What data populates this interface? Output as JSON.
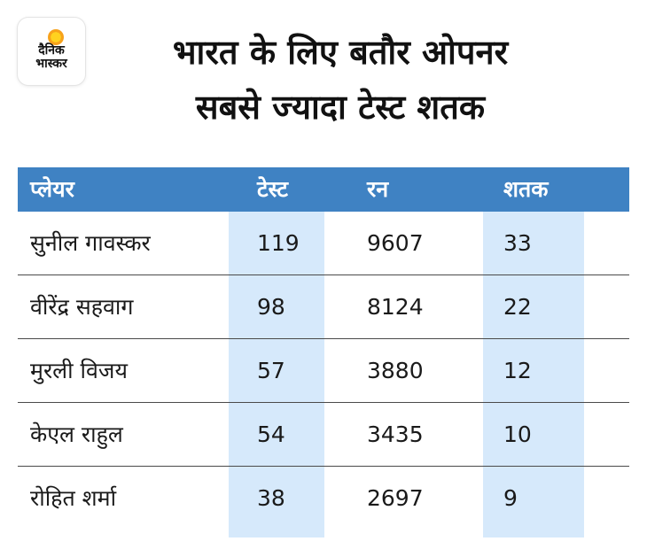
{
  "logo": {
    "line1": "दैनिक",
    "line2": "भास्कर"
  },
  "title": {
    "line1": "भारत के लिए बतौर ओपनर",
    "line2": "सबसे ज्यादा टेस्ट शतक"
  },
  "chart_data": {
    "type": "table",
    "title": "भारत के लिए बतौर ओपनर सबसे ज्यादा टेस्ट शतक",
    "columns": [
      "प्लेयर",
      "टेस्ट",
      "रन",
      "शतक"
    ],
    "rows": [
      [
        "सुनील गावस्कर",
        119,
        9607,
        33
      ],
      [
        "वीरेंद्र सहवाग",
        98,
        8124,
        22
      ],
      [
        "मुरली विजय",
        57,
        3880,
        12
      ],
      [
        "केएल राहुल",
        54,
        3435,
        10
      ],
      [
        "रोहित शर्मा",
        38,
        2697,
        9
      ]
    ],
    "header_color": "#3f82c3",
    "highlight_column_color": "#d6e9fb"
  }
}
